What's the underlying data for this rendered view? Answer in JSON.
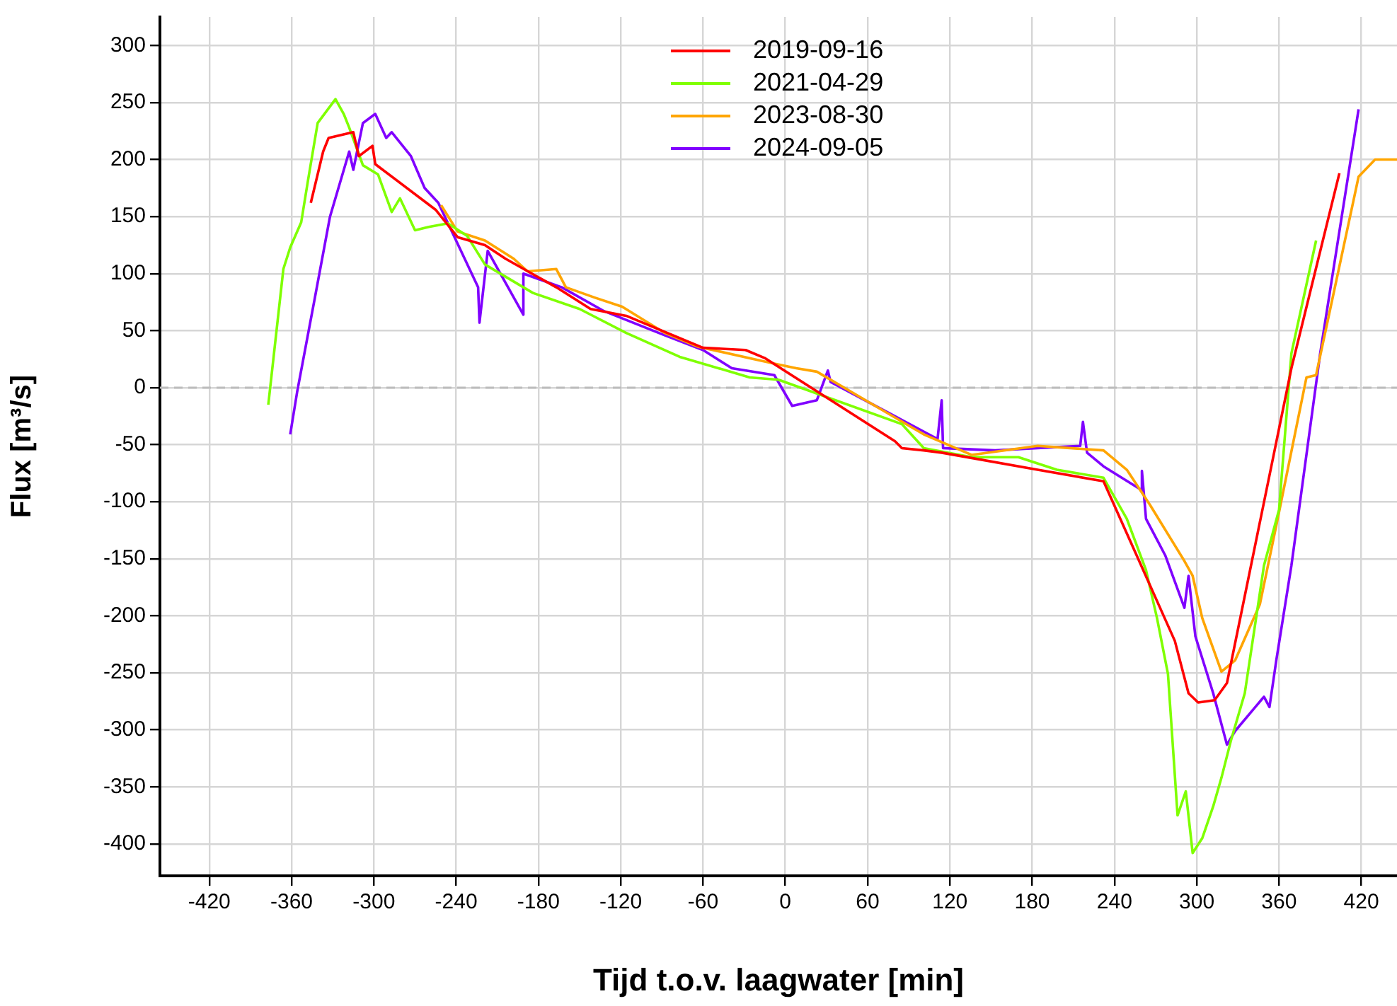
{
  "chart_data": {
    "type": "line",
    "xlabel": "Tijd t.o.v. laagwater [min]",
    "ylabel": "Flux [m³/s]",
    "xlim": [
      -456,
      446
    ],
    "ylim": [
      -428,
      325
    ],
    "xticks": [
      -420,
      -360,
      -300,
      -240,
      -180,
      -120,
      -60,
      0,
      60,
      120,
      180,
      240,
      300,
      360,
      420
    ],
    "yticks": [
      -400,
      -350,
      -300,
      -250,
      -200,
      -150,
      -100,
      -50,
      0,
      50,
      100,
      150,
      200,
      250,
      300
    ],
    "grid": true,
    "legend": "top",
    "marker": "none",
    "line_style": "solid",
    "ref_lines": [
      {
        "axis": "y",
        "value": 0,
        "color": "#bdbdbd",
        "line_style": "dashed"
      }
    ],
    "series": [
      {
        "name": "2019-09-16",
        "color": "#ff0000",
        "x": [
          -346,
          -337,
          -333,
          -315,
          -311,
          -301,
          -299,
          -255,
          -239,
          -219,
          -204,
          -167,
          -142,
          -116,
          -60,
          -29,
          -15,
          80,
          85,
          101,
          114,
          184,
          232,
          284,
          294,
          301,
          313,
          322,
          369,
          404
        ],
        "values": [
          162,
          207,
          219,
          224,
          203,
          212,
          196,
          156,
          132,
          125,
          113,
          88,
          69,
          63,
          35,
          33,
          26,
          -47,
          -53,
          -55,
          -57,
          -72,
          -82,
          -222,
          -268,
          -276,
          -274,
          -259,
          17,
          188
        ]
      },
      {
        "name": "2021-04-29",
        "color": "#7fff00",
        "x": [
          -377,
          -366,
          -361,
          -353,
          -348,
          -341,
          -328,
          -322,
          -318,
          -308,
          -297,
          -287,
          -281,
          -270,
          -260,
          -246,
          -232,
          -219,
          -184,
          -150,
          -116,
          -77,
          -26,
          -5,
          85,
          101,
          136,
          170,
          198,
          232,
          249,
          263,
          271,
          279,
          286,
          292,
          297,
          304,
          312,
          318,
          325,
          335,
          349,
          360,
          369,
          387
        ],
        "values": [
          -15,
          104,
          123,
          145,
          182,
          232,
          253,
          240,
          228,
          195,
          187,
          154,
          166,
          138,
          141,
          144,
          133,
          108,
          83,
          69,
          48,
          27,
          9,
          7,
          -32,
          -53,
          -61,
          -61,
          -72,
          -79,
          -115,
          -160,
          -202,
          -251,
          -375,
          -354,
          -408,
          -395,
          -367,
          -342,
          -309,
          -268,
          -156,
          -107,
          30,
          129
        ]
      },
      {
        "name": "2023-08-30",
        "color": "#ffa500",
        "x": [
          -251,
          -239,
          -219,
          -198,
          -188,
          -167,
          -160,
          -139,
          -119,
          -88,
          -64,
          -8,
          8,
          23,
          101,
          136,
          184,
          232,
          249,
          266,
          291,
          297,
          304,
          318,
          328,
          346,
          359,
          380,
          387,
          418,
          430,
          446
        ],
        "values": [
          160,
          137,
          129,
          113,
          102,
          104,
          88,
          79,
          71,
          48,
          36,
          21,
          17,
          14,
          -41,
          -59,
          -51,
          -55,
          -72,
          -103,
          -152,
          -165,
          -202,
          -249,
          -239,
          -190,
          -115,
          9,
          11,
          185,
          200,
          200
        ]
      },
      {
        "name": "2024-09-05",
        "color": "#8000ff",
        "x": [
          -361,
          -356,
          -343,
          -332,
          -318,
          -315,
          -308,
          -299,
          -291,
          -287,
          -273,
          -263,
          -253,
          -224,
          -223,
          -217,
          -191,
          -191,
          -163,
          -132,
          -88,
          -60,
          -39,
          -8,
          5,
          23,
          31,
          33,
          111,
          114,
          115,
          153,
          215,
          217,
          220,
          232,
          260,
          260,
          263,
          277,
          291,
          294,
          299,
          312,
          322,
          328,
          349,
          353,
          358,
          369,
          390,
          418
        ],
        "values": [
          -41,
          -4,
          79,
          150,
          207,
          191,
          232,
          240,
          219,
          224,
          203,
          175,
          162,
          88,
          57,
          120,
          64,
          100,
          88,
          67,
          46,
          33,
          17,
          11,
          -16,
          -11,
          15,
          5,
          -45,
          -11,
          -53,
          -55,
          -51,
          -30,
          -57,
          -69,
          -90,
          -73,
          -115,
          -147,
          -193,
          -165,
          -218,
          -268,
          -313,
          -301,
          -271,
          -280,
          -239,
          -156,
          30,
          244
        ]
      }
    ]
  }
}
